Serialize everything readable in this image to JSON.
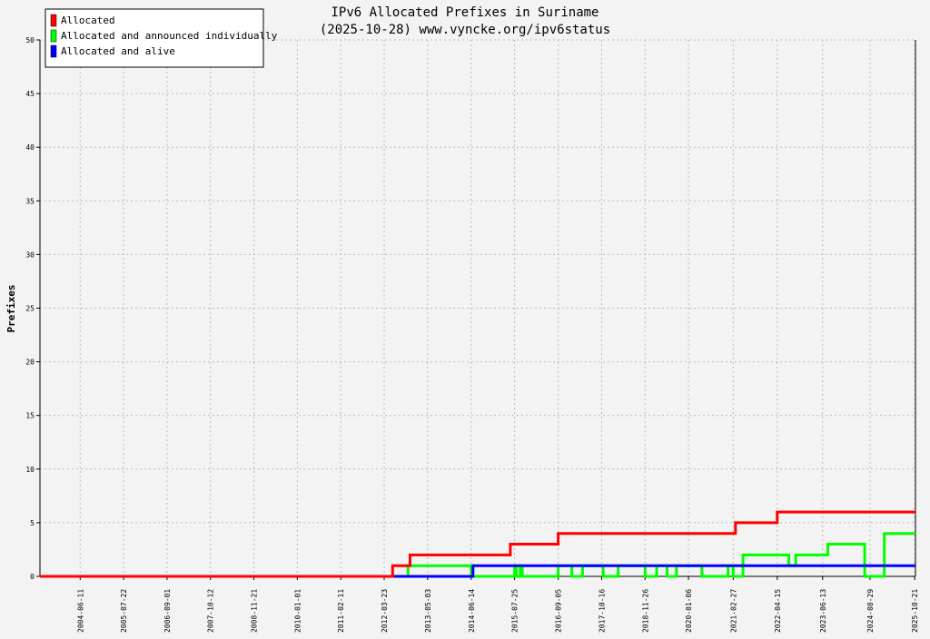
{
  "chart_data": {
    "type": "line",
    "title": "IPv6 Allocated Prefixes in Suriname",
    "subtitle": "(2025-10-28) www.vyncke.org/ipv6status",
    "xlabel": "",
    "ylabel": "Prefixes",
    "ylim": [
      0,
      50
    ],
    "xlim": [
      "2003-06-01",
      "2025-10-28"
    ],
    "yticks": [
      0,
      5,
      10,
      15,
      20,
      25,
      30,
      35,
      40,
      45,
      50
    ],
    "xticks": [
      "2004-06-11",
      "2005-07-22",
      "2006-09-01",
      "2007-10-12",
      "2008-11-21",
      "2010-01-01",
      "2011-02-11",
      "2012-03-23",
      "2013-05-03",
      "2014-06-14",
      "2015-07-25",
      "2016-09-05",
      "2017-10-16",
      "2018-11-26",
      "2020-01-06",
      "2021-02-27",
      "2022-04-15",
      "2023-06-13",
      "2024-08-29",
      "2025-10-21"
    ],
    "grid": true,
    "legend_position": "top-left",
    "series": [
      {
        "name": "Allocated",
        "color": "#ff0000",
        "x": [
          "2003-06-01",
          "2012-06-10",
          "2012-06-10",
          "2012-11-20",
          "2012-11-20",
          "2015-06-15",
          "2015-06-15",
          "2016-09-05",
          "2016-09-05",
          "2021-03-20",
          "2021-03-20",
          "2022-04-15",
          "2022-04-15",
          "2025-10-28"
        ],
        "values": [
          0,
          0,
          1,
          1,
          2,
          2,
          3,
          3,
          4,
          4,
          5,
          5,
          6,
          6
        ]
      },
      {
        "name": "Allocated and announced individually",
        "color": "#00ff00",
        "x": [
          "2003-06-01",
          "2012-11-01",
          "2012-11-01",
          "2014-06-14",
          "2014-06-14",
          "2015-07-25",
          "2015-07-25",
          "2015-08-10",
          "2015-08-10",
          "2015-09-15",
          "2015-09-15",
          "2015-10-05",
          "2015-10-05",
          "2016-09-05",
          "2016-09-05",
          "2017-01-10",
          "2017-01-10",
          "2017-04-20",
          "2017-04-20",
          "2017-10-30",
          "2017-10-30",
          "2018-03-20",
          "2018-03-20",
          "2018-11-26",
          "2018-11-26",
          "2019-03-15",
          "2019-03-15",
          "2019-06-20",
          "2019-06-20",
          "2019-09-15",
          "2019-09-15",
          "2020-05-10",
          "2020-05-10",
          "2021-01-10",
          "2021-01-10",
          "2021-02-27",
          "2021-02-27",
          "2021-05-30",
          "2021-05-30",
          "2022-08-01",
          "2022-08-01",
          "2022-10-05",
          "2022-10-05",
          "2023-08-01",
          "2023-08-01",
          "2024-07-10",
          "2024-07-10",
          "2025-01-10",
          "2025-01-10",
          "2025-10-28"
        ],
        "values": [
          0,
          0,
          1,
          1,
          0,
          0,
          1,
          1,
          0,
          0,
          1,
          1,
          0,
          0,
          1,
          1,
          0,
          0,
          1,
          1,
          0,
          0,
          1,
          1,
          0,
          0,
          1,
          1,
          0,
          0,
          1,
          1,
          0,
          0,
          1,
          1,
          0,
          0,
          2,
          2,
          1,
          1,
          2,
          2,
          3,
          3,
          0,
          0,
          4,
          4
        ]
      },
      {
        "name": "Allocated and alive",
        "color": "#0000ff",
        "x": [
          "2003-06-01",
          "2014-07-01",
          "2014-07-01",
          "2025-10-28"
        ],
        "values": [
          0,
          0,
          1,
          1
        ]
      }
    ]
  }
}
